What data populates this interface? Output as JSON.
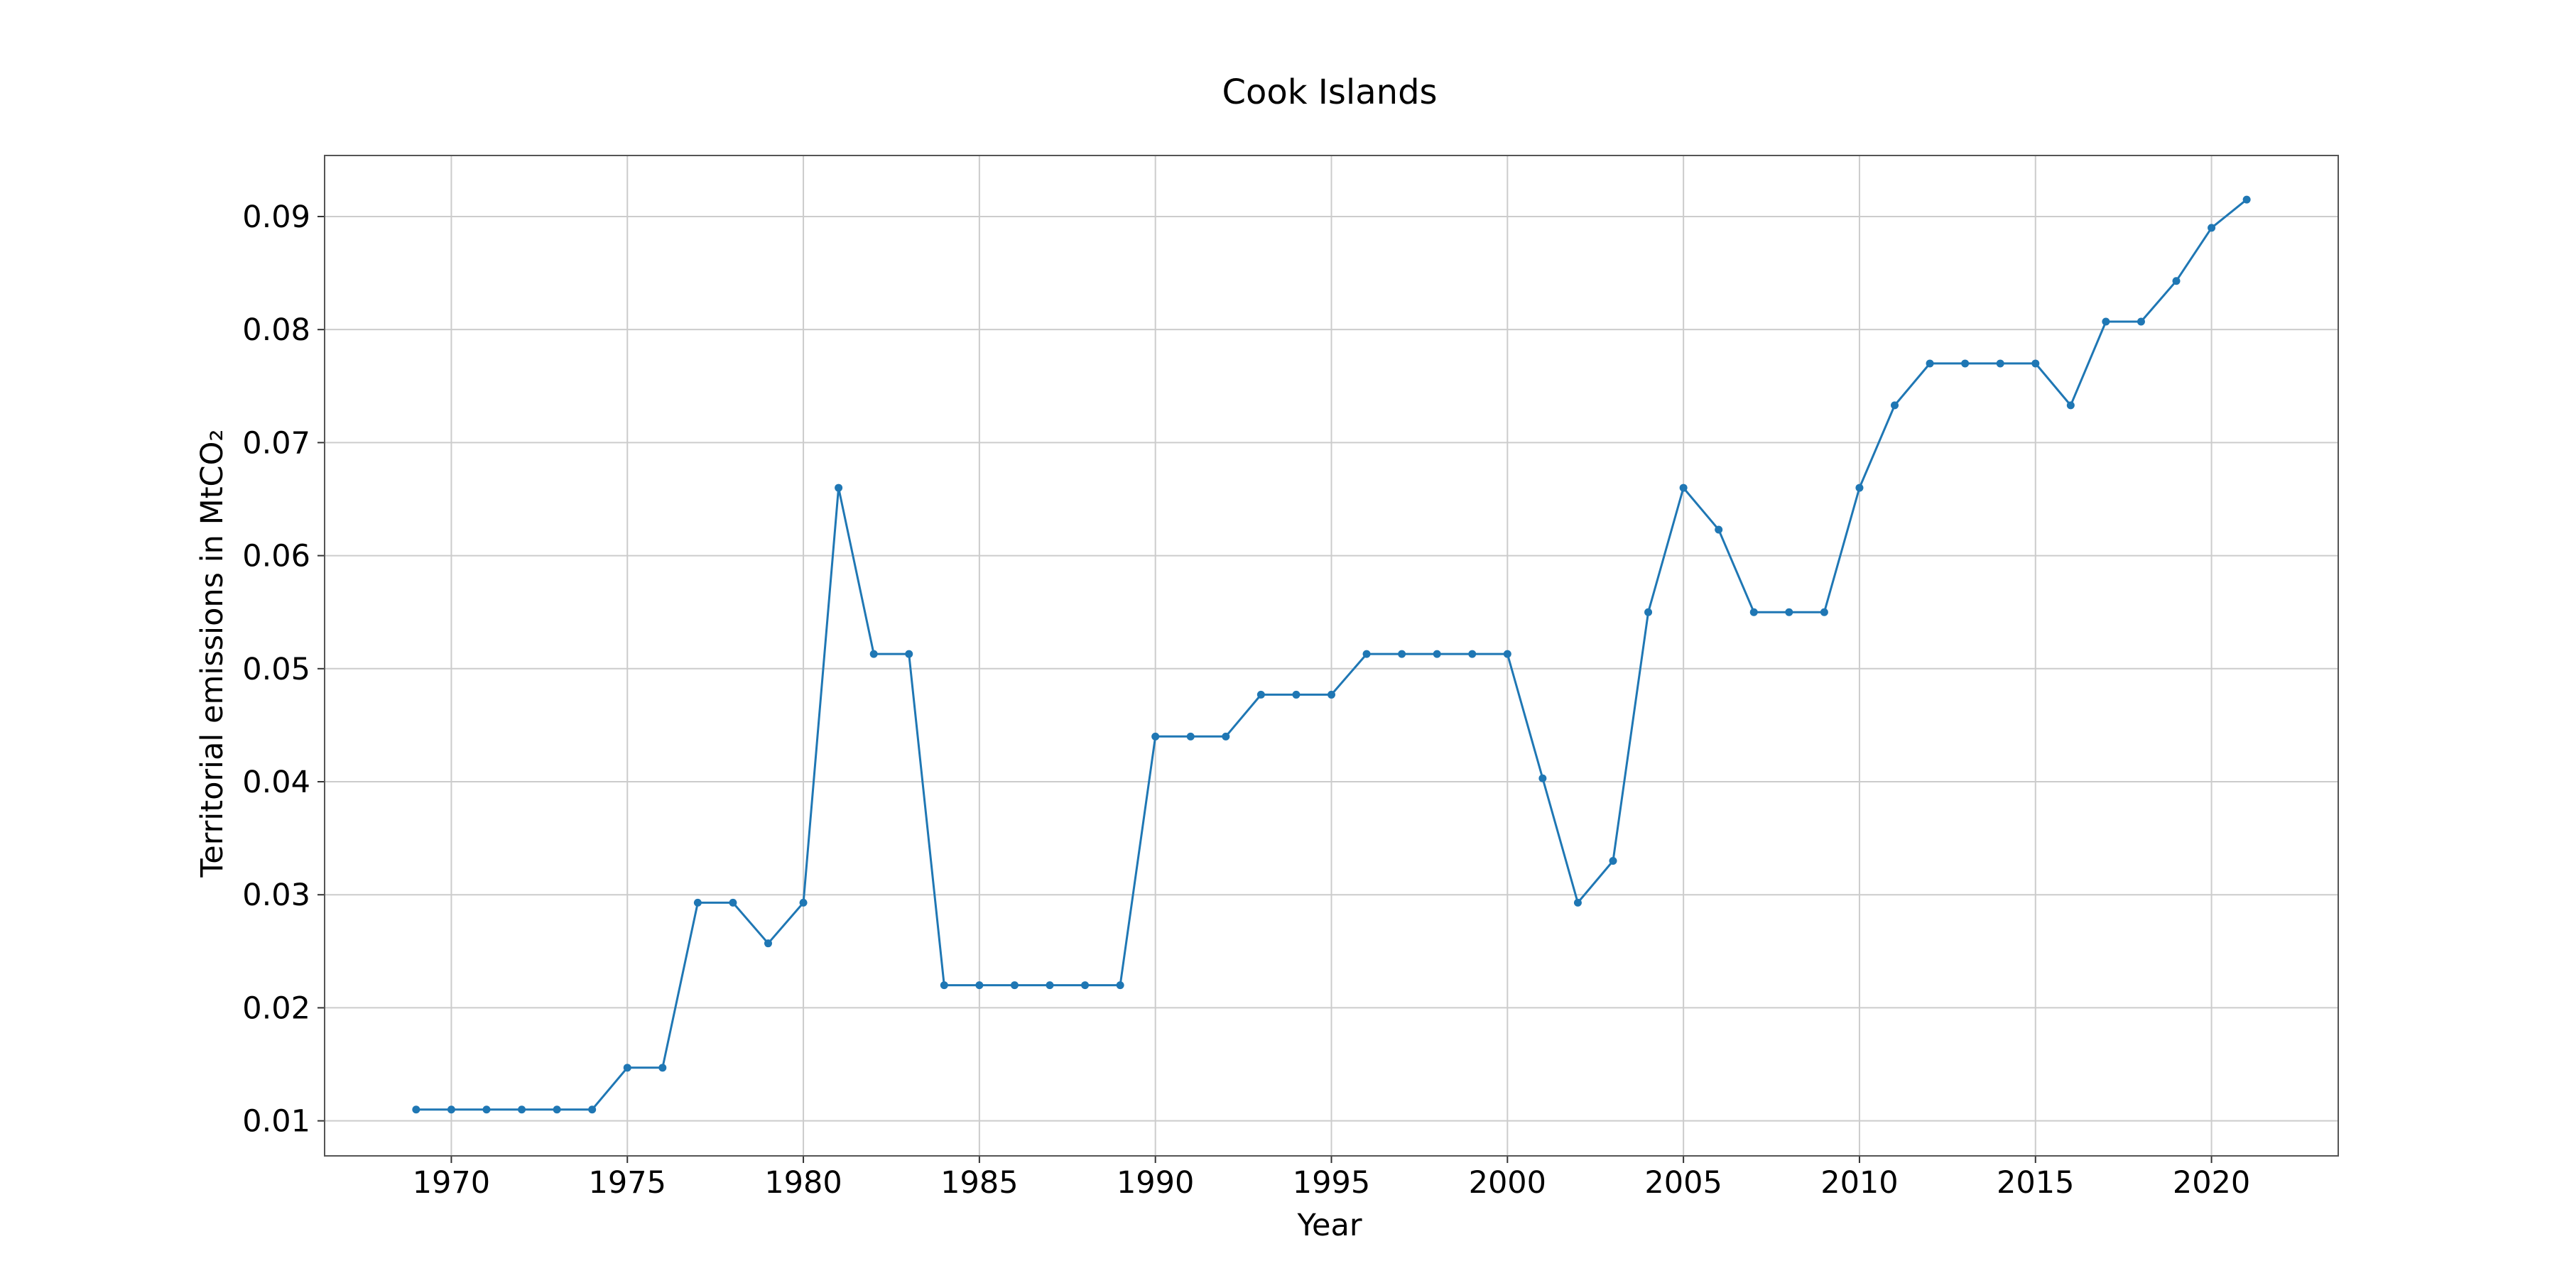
{
  "chart_data": {
    "type": "line",
    "title": "Cook Islands",
    "xlabel": "Year",
    "ylabel": "Territorial emissions in MtCO₂",
    "xlim": [
      1966.4,
      2023.6
    ],
    "ylim": [
      0.0069,
      0.0954
    ],
    "xticks": [
      1970,
      1975,
      1980,
      1985,
      1990,
      1995,
      2000,
      2005,
      2010,
      2015,
      2020
    ],
    "yticks": [
      0.01,
      0.02,
      0.03,
      0.04,
      0.05,
      0.06,
      0.07,
      0.08,
      0.09
    ],
    "ytick_labels": [
      "0.01",
      "0.02",
      "0.03",
      "0.04",
      "0.05",
      "0.06",
      "0.07",
      "0.08",
      "0.09"
    ],
    "grid": true,
    "color": "#1f77b4",
    "series": [
      {
        "x": [
          1969,
          1970,
          1971,
          1972,
          1973,
          1974,
          1975,
          1976,
          1977,
          1978,
          1979,
          1980,
          1981,
          1982,
          1983,
          1984,
          1985,
          1986,
          1987,
          1988,
          1989,
          1990,
          1991,
          1992,
          1993,
          1994,
          1995,
          1996,
          1997,
          1998,
          1999,
          2000,
          2001,
          2002,
          2003,
          2004,
          2005,
          2006,
          2007,
          2008,
          2009,
          2010,
          2011,
          2012,
          2013,
          2014,
          2015,
          2016,
          2017,
          2018,
          2019,
          2020,
          2021
        ],
        "y": [
          0.011,
          0.011,
          0.011,
          0.011,
          0.011,
          0.011,
          0.0147,
          0.0147,
          0.0293,
          0.0293,
          0.0257,
          0.0293,
          0.066,
          0.0513,
          0.0513,
          0.022,
          0.022,
          0.022,
          0.022,
          0.022,
          0.022,
          0.044,
          0.044,
          0.044,
          0.0477,
          0.0477,
          0.0477,
          0.0513,
          0.0513,
          0.0513,
          0.0513,
          0.0513,
          0.0403,
          0.0293,
          0.033,
          0.055,
          0.066,
          0.0623,
          0.055,
          0.055,
          0.055,
          0.066,
          0.0733,
          0.077,
          0.077,
          0.077,
          0.077,
          0.0733,
          0.0807,
          0.0807,
          0.0843,
          0.089,
          0.0915
        ]
      }
    ]
  }
}
